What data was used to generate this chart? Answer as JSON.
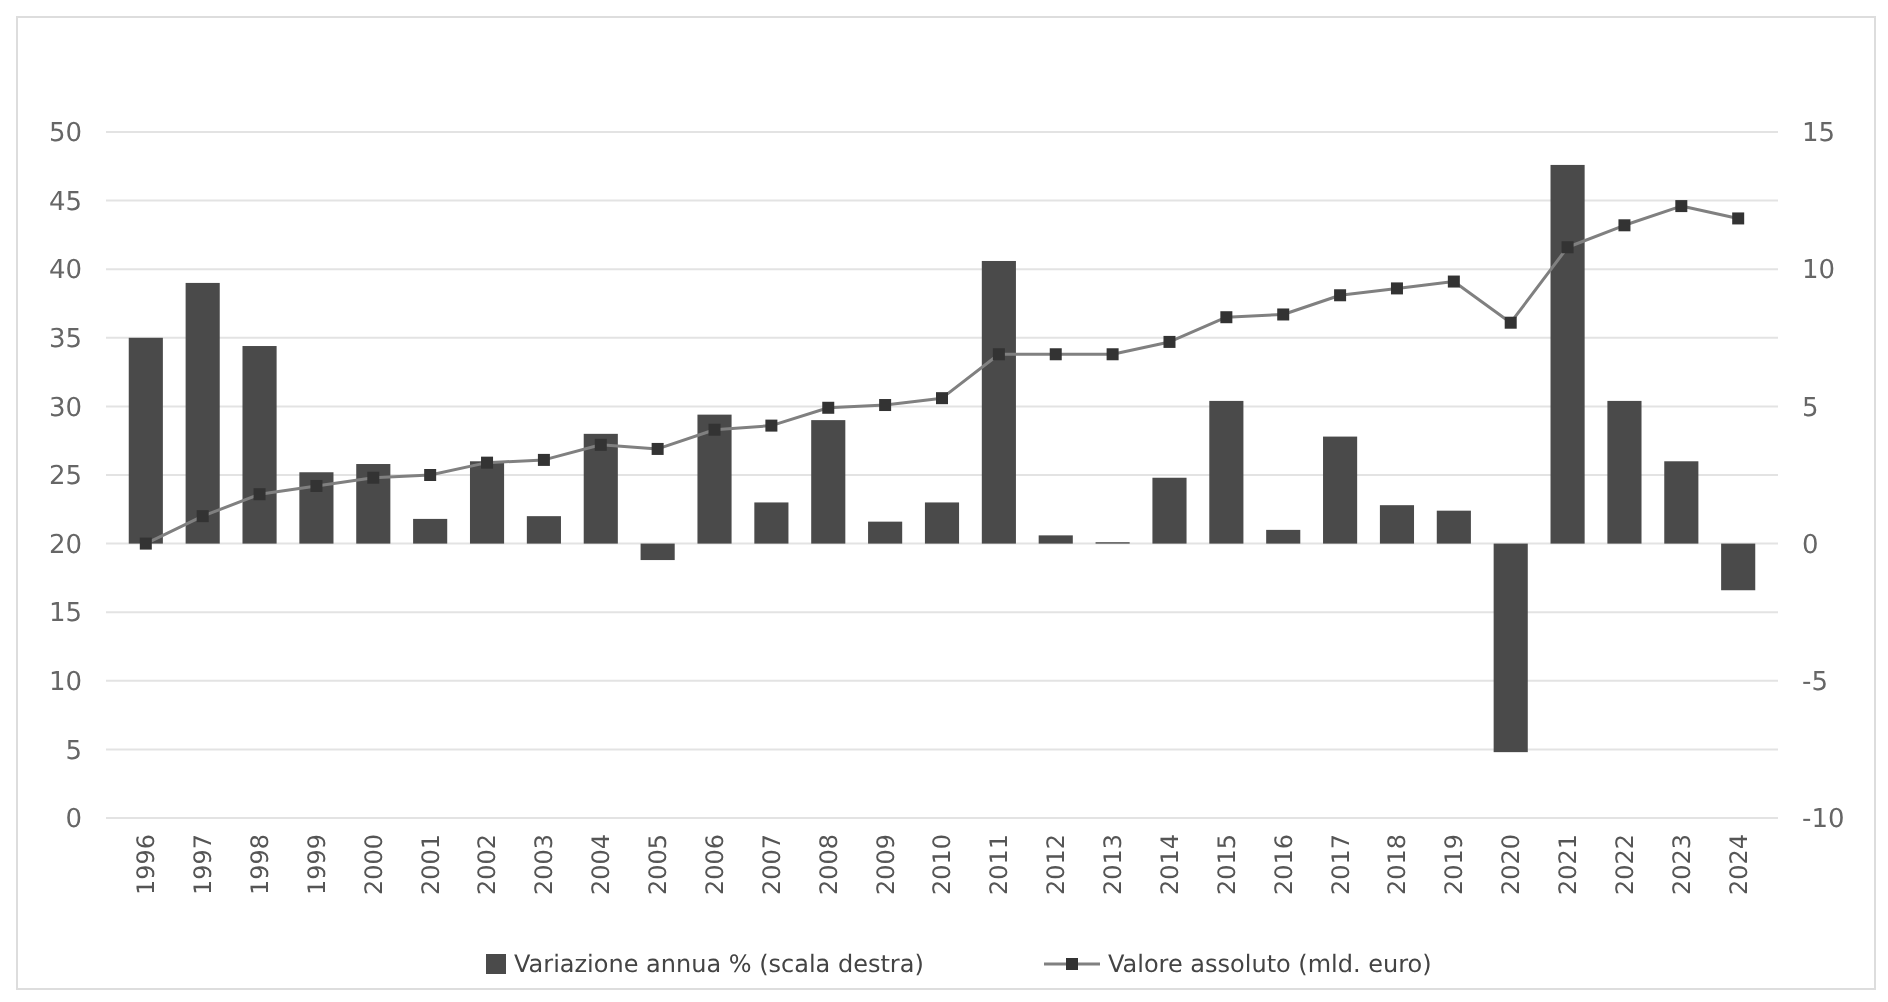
{
  "chart_data": {
    "type": "bar",
    "categories": [
      "1996",
      "1997",
      "1998",
      "1999",
      "2000",
      "2001",
      "2002",
      "2003",
      "2004",
      "2005",
      "2006",
      "2007",
      "2008",
      "2009",
      "2010",
      "2011",
      "2012",
      "2013",
      "2014",
      "2015",
      "2016",
      "2017",
      "2018",
      "2019",
      "2020",
      "2021",
      "2022",
      "2023",
      "2024"
    ],
    "series": [
      {
        "name": "Variazione annua % (scala destra)",
        "axis": "y2",
        "color": "#4a4a4a",
        "values": [
          7.5,
          9.5,
          7.2,
          2.6,
          2.9,
          0.9,
          3.0,
          1.0,
          4.0,
          -0.6,
          4.7,
          1.5,
          4.5,
          0.8,
          1.5,
          10.3,
          0.3,
          0.05,
          2.4,
          5.2,
          0.5,
          3.9,
          1.4,
          1.2,
          -7.6,
          13.8,
          5.2,
          3.0,
          -1.7
        ]
      },
      {
        "name": "Valore assoluto (mld. euro)",
        "type": "line",
        "axis": "y",
        "color": "#808080",
        "marker": "square",
        "values": [
          20,
          22.0,
          23.6,
          24.2,
          24.8,
          25.0,
          25.9,
          26.1,
          27.2,
          26.9,
          28.3,
          28.6,
          29.9,
          30.1,
          30.6,
          33.8,
          33.8,
          33.8,
          34.7,
          36.5,
          36.7,
          38.1,
          38.6,
          39.1,
          36.1,
          41.6,
          43.2,
          44.6,
          43.7
        ]
      }
    ],
    "ylim": [
      0,
      50
    ],
    "yticks": [
      0,
      5,
      10,
      15,
      20,
      25,
      30,
      35,
      40,
      45,
      50
    ],
    "y2lim": [
      -10,
      15
    ],
    "y2ticks": [
      -10,
      -5,
      0,
      5,
      10,
      15
    ],
    "grid": "y",
    "legend": "bottom"
  }
}
